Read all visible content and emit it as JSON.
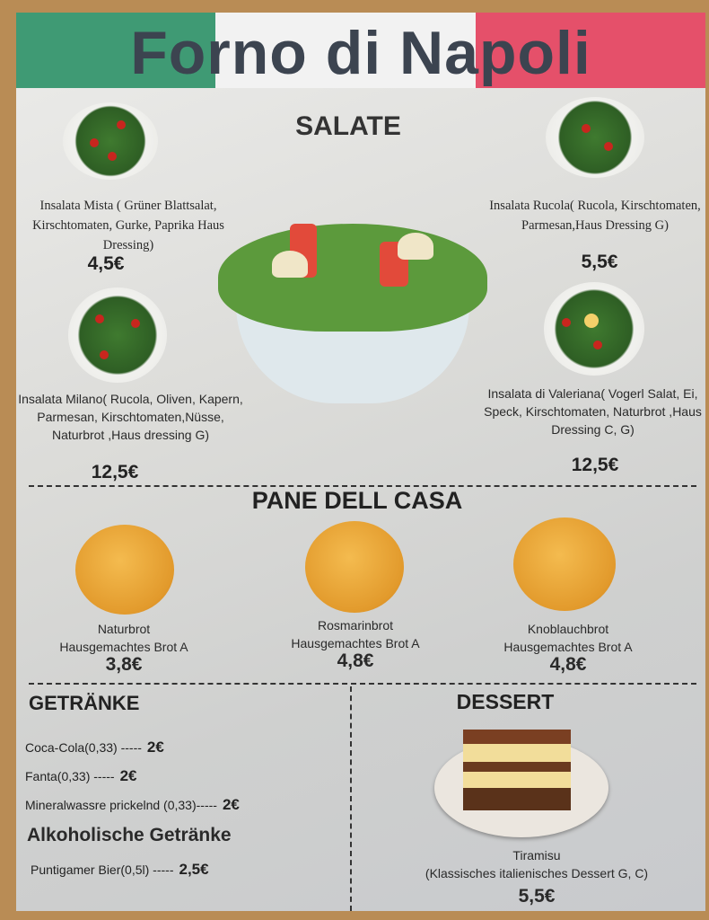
{
  "title": "Forno di Napoli",
  "colors": {
    "green": "#3f9a74",
    "white": "#f2f2f2",
    "red": "#e5506a"
  },
  "salads": {
    "heading": "SALATE",
    "items": [
      {
        "name": "Insalata Mista ( Grüner Blattsalat, Kirschtomaten, Gurke, Paprika Haus Dressing)",
        "price": "4,5€"
      },
      {
        "name": "Insalata Rucola( Rucola, Kirschtomaten, Parmesan,Haus Dressing G)",
        "price": "5,5€"
      },
      {
        "name": "Insalata Milano( Rucola, Oliven, Kapern, Parmesan, Kirschtomaten,Nüsse, Naturbrot ,Haus dressing G)",
        "price": "12,5€"
      },
      {
        "name": "Insalata di Valeriana( Vogerl Salat, Ei, Speck, Kirschtomaten, Naturbrot ,Haus Dressing C, G)",
        "price": "12,5€"
      }
    ]
  },
  "bread": {
    "heading": "PANE DELL CASA",
    "items": [
      {
        "name": "Naturbrot",
        "desc": "Hausgemachtes Brot A",
        "price": "3,8€"
      },
      {
        "name": "Rosmarinbrot",
        "desc": "Hausgemachtes Brot A",
        "price": "4,8€"
      },
      {
        "name": "Knoblauchbrot",
        "desc": "Hausgemachtes Brot A",
        "price": "4,8€"
      }
    ]
  },
  "drinks": {
    "heading": "GETRÄNKE",
    "items": [
      {
        "name": "Coca-Cola(0,33) -----",
        "price": "2€"
      },
      {
        "name": "Fanta(0,33) -----",
        "price": "2€"
      },
      {
        "name": "Mineralwassre prickelnd (0,33)-----",
        "price": "2€"
      }
    ],
    "alcohol_heading": "Alkoholische Getränke",
    "alcohol": [
      {
        "name": "Puntigamer Bier(0,5l) -----",
        "price": "2,5€"
      }
    ]
  },
  "dessert": {
    "heading": "DESSERT",
    "name": "Tiramisu",
    "desc": "(Klassisches italienisches Dessert G, C)",
    "price": "5,5€"
  }
}
